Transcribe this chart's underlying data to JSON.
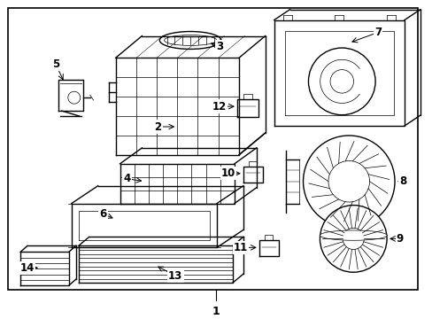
{
  "background_color": "#ffffff",
  "border_color": "#000000",
  "line_color": "#000000",
  "label_color": "#000000",
  "fig_width": 4.89,
  "fig_height": 3.6,
  "dpi": 100
}
